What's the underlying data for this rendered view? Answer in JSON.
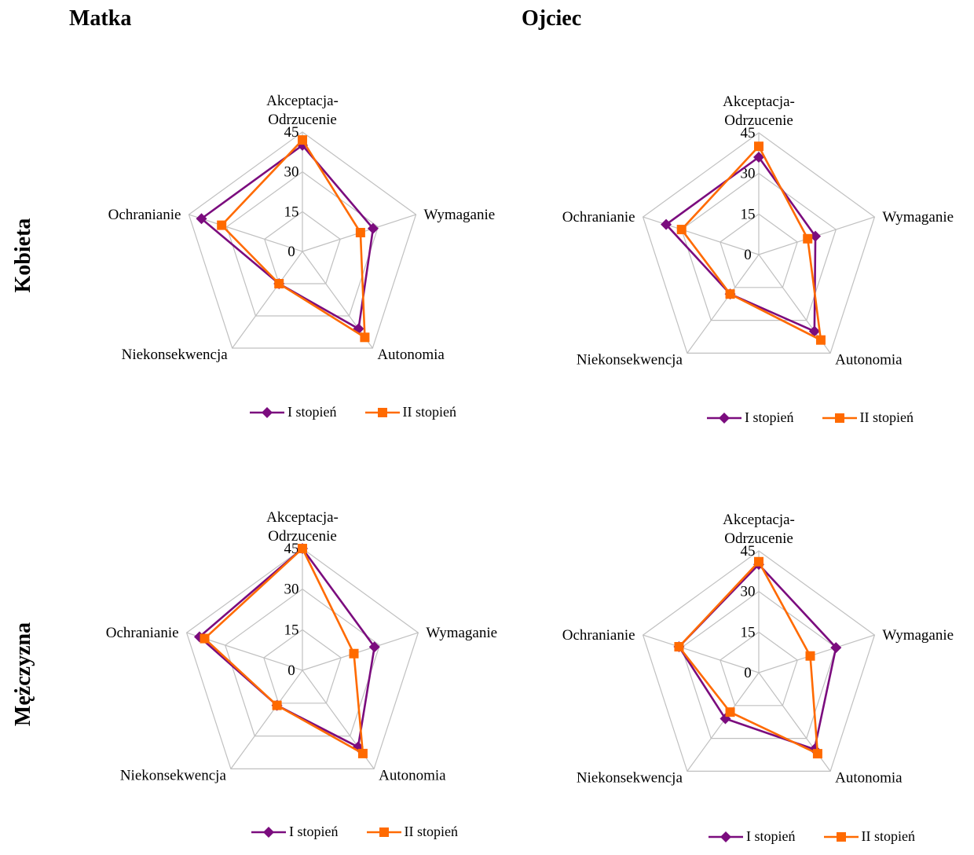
{
  "columns": [
    "Matka",
    "Ojciec"
  ],
  "rows": [
    "Kobieta",
    "Mężczyzna"
  ],
  "colors": {
    "I stopień": "#7B0C7E",
    "II stopień": "#FF6A00",
    "grid": "#C0C0C0"
  },
  "chart_data": [
    {
      "type": "radar",
      "column": "Matka",
      "row": "Kobieta",
      "axes": [
        [
          "Akceptacja-",
          "Odrzucenie"
        ],
        [
          "Wymaganie"
        ],
        [
          "Autonomia"
        ],
        [
          "Niekonsekwencja"
        ],
        [
          "Ochranianie"
        ]
      ],
      "ticks": [
        "0",
        "15",
        "30",
        "45"
      ],
      "rmax": 45,
      "series": [
        {
          "name": "I stopień",
          "marker": "diamond",
          "values": [
            40,
            28,
            36,
            15,
            40
          ]
        },
        {
          "name": "II stopień",
          "marker": "square",
          "values": [
            42,
            23,
            40,
            15,
            32
          ]
        }
      ]
    },
    {
      "type": "radar",
      "column": "Ojciec",
      "row": "Kobieta",
      "axes": [
        [
          "Akceptacja-",
          "Odrzucenie"
        ],
        [
          "Wymaganie"
        ],
        [
          "Autonomia"
        ],
        [
          "Niekonsekwencja"
        ],
        [
          "Ochranianie"
        ]
      ],
      "ticks": [
        "0",
        "15",
        "30",
        "45"
      ],
      "rmax": 45,
      "series": [
        {
          "name": "I stopień",
          "marker": "diamond",
          "values": [
            36,
            22,
            35,
            18,
            36
          ]
        },
        {
          "name": "II stopień",
          "marker": "square",
          "values": [
            40,
            19,
            39,
            18,
            30
          ]
        }
      ]
    },
    {
      "type": "radar",
      "column": "Matka",
      "row": "Mężczyzna",
      "axes": [
        [
          "Akceptacja-",
          "Odrzucenie"
        ],
        [
          "Wymaganie"
        ],
        [
          "Autonomia"
        ],
        [
          "Niekonsekwencja"
        ],
        [
          "Ochranianie"
        ]
      ],
      "ticks": [
        "0",
        "15",
        "30",
        "45"
      ],
      "rmax": 45,
      "series": [
        {
          "name": "I stopień",
          "marker": "diamond",
          "values": [
            45,
            28,
            35,
            16,
            40
          ]
        },
        {
          "name": "II stopień",
          "marker": "square",
          "values": [
            45,
            20,
            38,
            16,
            38
          ]
        }
      ]
    },
    {
      "type": "radar",
      "column": "Ojciec",
      "row": "Mężczyzna",
      "axes": [
        [
          "Akceptacja-",
          "Odrzucenie"
        ],
        [
          "Wymaganie"
        ],
        [
          "Autonomia"
        ],
        [
          "Niekonsekwencja"
        ],
        [
          "Ochranianie"
        ]
      ],
      "ticks": [
        "0",
        "15",
        "30",
        "45"
      ],
      "rmax": 45,
      "series": [
        {
          "name": "I stopień",
          "marker": "diamond",
          "values": [
            40,
            30,
            35,
            21,
            31
          ]
        },
        {
          "name": "II stopień",
          "marker": "square",
          "values": [
            41,
            20,
            37,
            18,
            31
          ]
        }
      ]
    }
  ]
}
